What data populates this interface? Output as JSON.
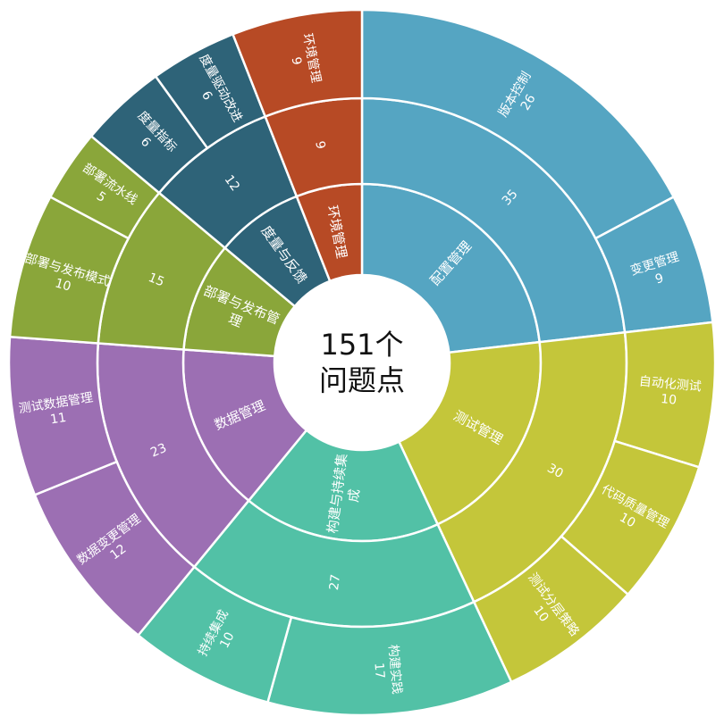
{
  "chart_data": {
    "type": "sunburst",
    "center_label": [
      "151个",
      "问题点"
    ],
    "total": 151,
    "colors": {
      "配置管理": "#55a5c2",
      "测试管理": "#c4c63a",
      "构建与持续集成": "#52c1a6",
      "数据管理": "#9c6fb3",
      "部署与发布管理": "#8aa63a",
      "度量与反馈": "#2e6378",
      "环境管理": "#b74a25"
    },
    "children": [
      {
        "name": "配置管理",
        "value": 35,
        "children": [
          {
            "name": "版本控制",
            "value": 26
          },
          {
            "name": "变更管理",
            "value": 9
          }
        ]
      },
      {
        "name": "测试管理",
        "value": 30,
        "children": [
          {
            "name": "自动化测试",
            "value": 10
          },
          {
            "name": "代码质量管理",
            "value": 10
          },
          {
            "name": "测试分层策略",
            "value": 10
          }
        ]
      },
      {
        "name": "构建与持续集成",
        "value": 27,
        "children": [
          {
            "name": "构建实践",
            "value": 17
          },
          {
            "name": "持续集成",
            "value": 10
          }
        ]
      },
      {
        "name": "数据管理",
        "value": 23,
        "children": [
          {
            "name": "数据变更管理",
            "value": 12
          },
          {
            "name": "测试数据管理",
            "value": 11
          }
        ]
      },
      {
        "name": "部署与发布管理",
        "value": 15,
        "children": [
          {
            "name": "部署与发布模式",
            "value": 10
          },
          {
            "name": "部署流水线",
            "value": 5
          }
        ]
      },
      {
        "name": "度量与反馈",
        "value": 12,
        "children": [
          {
            "name": "度量指标",
            "value": 6
          },
          {
            "name": "度量驱动改进",
            "value": 6
          }
        ]
      },
      {
        "name": "环境管理",
        "value": 9,
        "children": [
          {
            "name": "环境管理",
            "value": 9
          }
        ]
      }
    ]
  }
}
